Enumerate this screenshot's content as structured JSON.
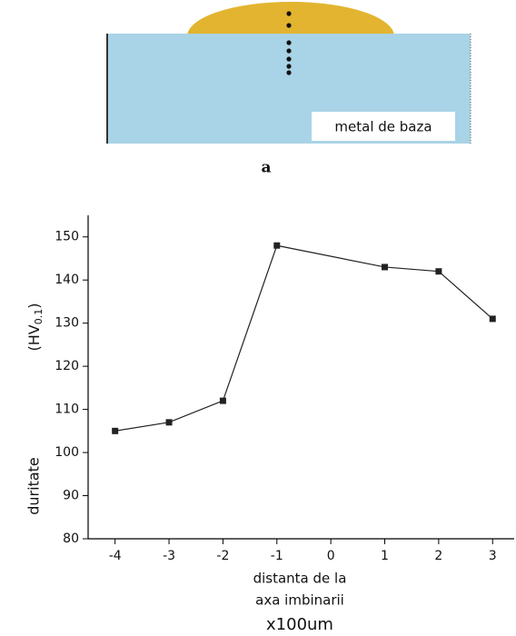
{
  "diagram": {
    "label": "metal de baza",
    "caption": "a"
  },
  "chart_data": {
    "type": "line",
    "y_label": "duritate",
    "y_unit_parts": [
      "(HV",
      "0.1",
      ")"
    ],
    "x_label": [
      "distanta de la",
      "axa imbinarii"
    ],
    "x_unit": "x100um",
    "x": [
      -4,
      -3,
      -2,
      -1,
      1,
      2,
      3
    ],
    "series": [
      {
        "color": "#222222",
        "values": [
          105,
          107,
          112,
          148,
          143,
          142,
          131
        ]
      }
    ],
    "xlim": [
      -4.5,
      3.4
    ],
    "ylim": [
      80,
      155
    ],
    "xticks": [
      -4,
      -3,
      -2,
      -1,
      0,
      1,
      2,
      3
    ],
    "yticks": [
      80,
      90,
      100,
      110,
      120,
      130,
      140,
      150
    ]
  }
}
